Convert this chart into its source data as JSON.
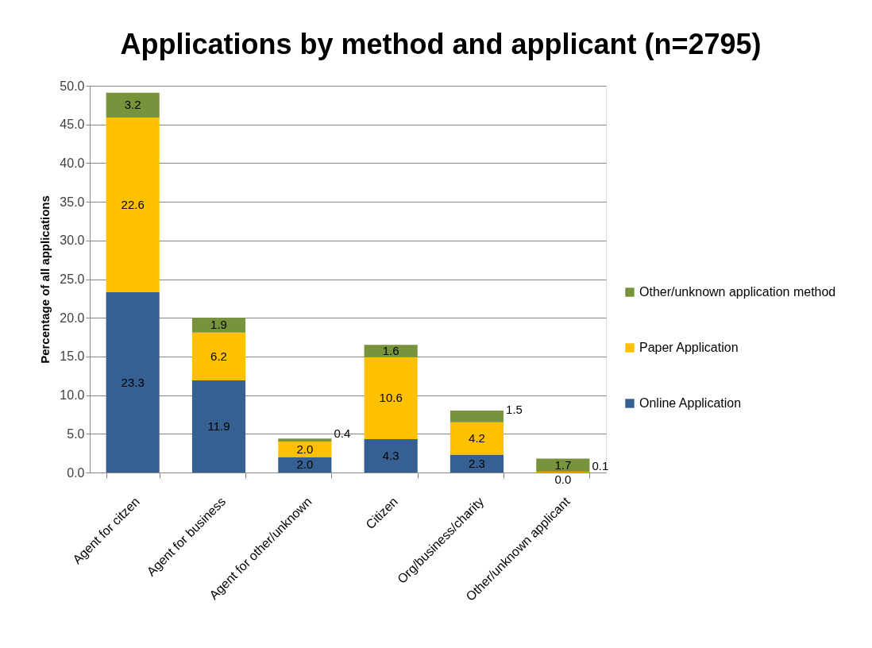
{
  "chart_data": {
    "type": "bar",
    "title": "Applications by method and applicant (n=2795)",
    "ylabel": "Percentage of all applications",
    "categories": [
      "Agent for citzen",
      "Agent for business",
      "Agent for other/unknown",
      "Citizen",
      "Org/business/charity",
      "Other/unknown applicant"
    ],
    "series": [
      {
        "name": "Online Application",
        "color": "#376092",
        "values": [
          23.3,
          11.9,
          2.0,
          4.3,
          2.3,
          0.0
        ],
        "value_labels": [
          "23.3",
          "11.9",
          "2.0",
          "4.3",
          "2.3",
          "0.0"
        ]
      },
      {
        "name": "Paper Application",
        "color": "#ffc000",
        "values": [
          22.6,
          6.2,
          2.0,
          10.6,
          4.2,
          0.1
        ],
        "value_labels": [
          "22.6",
          "6.2",
          "2.0",
          "10.6",
          "4.2",
          "0.1"
        ]
      },
      {
        "name": "Other/unknown application method",
        "color": "#77933c",
        "values": [
          3.2,
          1.9,
          0.4,
          1.6,
          1.5,
          1.7
        ],
        "value_labels": [
          "3.2",
          "1.9",
          "0.4",
          "1.6",
          "1.5",
          "1.7"
        ]
      }
    ],
    "stacked": true,
    "ylim": [
      0,
      50
    ],
    "yticks": [
      {
        "value": 0,
        "label": "0.0"
      },
      {
        "value": 5,
        "label": "5.0"
      },
      {
        "value": 10,
        "label": "10.0"
      },
      {
        "value": 15,
        "label": "15.0"
      },
      {
        "value": 20,
        "label": "20.0"
      },
      {
        "value": 25,
        "label": "25.0"
      },
      {
        "value": 30,
        "label": "30.0"
      },
      {
        "value": 35,
        "label": "35.0"
      },
      {
        "value": 40,
        "label": "40.0"
      },
      {
        "value": 45,
        "label": "45.0"
      },
      {
        "value": 50,
        "label": "50.0"
      }
    ],
    "grid": "y",
    "legend": "right"
  }
}
